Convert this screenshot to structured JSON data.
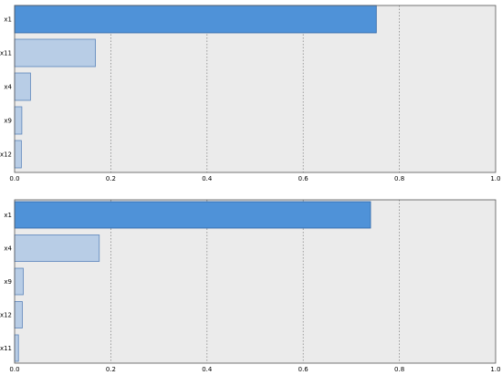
{
  "colors": {
    "plot_bg": "#ebebeb",
    "plot_border": "#555555",
    "grid": "#888888",
    "bar_highlight_fill": "#4f92d8",
    "bar_highlight_stroke": "#2f66a8",
    "bar_fill": "#b8cde6",
    "bar_stroke": "#5b84bb"
  },
  "chart_data": [
    {
      "type": "bar",
      "orientation": "horizontal",
      "categories": [
        "x1",
        "x11",
        "x4",
        "x9",
        "x12"
      ],
      "values": [
        0.752,
        0.168,
        0.033,
        0.015,
        0.014
      ],
      "xlim": [
        0,
        1.0
      ],
      "xticks": [
        "0.0",
        "0.2",
        "0.4",
        "0.6",
        "0.8",
        "1.0"
      ],
      "grid": "vertical-dashed",
      "highlight_index": 0
    },
    {
      "type": "bar",
      "orientation": "horizontal",
      "categories": [
        "x1",
        "x4",
        "x9",
        "x12",
        "x11"
      ],
      "values": [
        0.74,
        0.176,
        0.018,
        0.016,
        0.008
      ],
      "xlim": [
        0,
        1.0
      ],
      "xticks": [
        "0.0",
        "0.2",
        "0.4",
        "0.6",
        "0.8",
        "1.0"
      ],
      "grid": "vertical-dashed",
      "highlight_index": 0
    }
  ]
}
